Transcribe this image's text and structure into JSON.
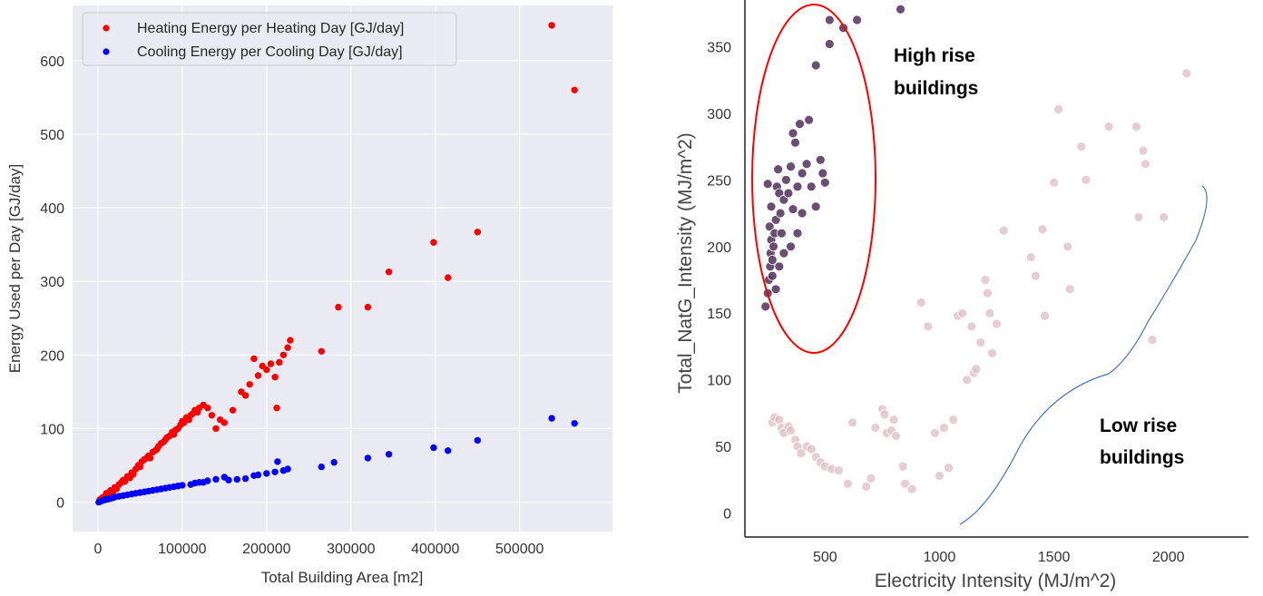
{
  "chart_data": [
    {
      "type": "scatter",
      "xlabel": "Total Building Area [m2]",
      "ylabel": "Energy Used per Day [GJ/day]",
      "xlim": [
        -30000,
        610000
      ],
      "ylim": [
        -40,
        675
      ],
      "x_ticks": [
        0,
        100000,
        200000,
        300000,
        400000,
        500000
      ],
      "y_ticks": [
        0,
        100,
        200,
        300,
        400,
        500,
        600
      ],
      "grid": true,
      "legend_position": "top-left",
      "series": [
        {
          "name": "Heating Energy per Heating Day [GJ/day]",
          "color": "#ff0000",
          "points": [
            [
              2000,
              3
            ],
            [
              5000,
              6
            ],
            [
              8000,
              8
            ],
            [
              10000,
              12
            ],
            [
              12000,
              10
            ],
            [
              15000,
              16
            ],
            [
              18000,
              14
            ],
            [
              20000,
              20
            ],
            [
              22000,
              18
            ],
            [
              25000,
              24
            ],
            [
              28000,
              27
            ],
            [
              30000,
              30
            ],
            [
              32000,
              28
            ],
            [
              35000,
              35
            ],
            [
              38000,
              33
            ],
            [
              40000,
              40
            ],
            [
              42000,
              38
            ],
            [
              45000,
              45
            ],
            [
              48000,
              50
            ],
            [
              50000,
              48
            ],
            [
              52000,
              55
            ],
            [
              55000,
              58
            ],
            [
              58000,
              60
            ],
            [
              60000,
              63
            ],
            [
              62000,
              60
            ],
            [
              65000,
              68
            ],
            [
              68000,
              70
            ],
            [
              70000,
              72
            ],
            [
              72000,
              76
            ],
            [
              75000,
              80
            ],
            [
              78000,
              82
            ],
            [
              80000,
              85
            ],
            [
              82000,
              88
            ],
            [
              85000,
              90
            ],
            [
              88000,
              95
            ],
            [
              90000,
              92
            ],
            [
              92000,
              98
            ],
            [
              95000,
              100
            ],
            [
              98000,
              105
            ],
            [
              100000,
              110
            ],
            [
              102000,
              108
            ],
            [
              105000,
              115
            ],
            [
              108000,
              112
            ],
            [
              110000,
              118
            ],
            [
              112000,
              120
            ],
            [
              115000,
              125
            ],
            [
              118000,
              122
            ],
            [
              120000,
              128
            ],
            [
              125000,
              132
            ],
            [
              130000,
              128
            ],
            [
              135000,
              118
            ],
            [
              140000,
              100
            ],
            [
              145000,
              112
            ],
            [
              150000,
              108
            ],
            [
              160000,
              125
            ],
            [
              170000,
              150
            ],
            [
              175000,
              145
            ],
            [
              180000,
              160
            ],
            [
              185000,
              195
            ],
            [
              190000,
              172
            ],
            [
              195000,
              185
            ],
            [
              200000,
              180
            ],
            [
              205000,
              188
            ],
            [
              210000,
              170
            ],
            [
              212000,
              128
            ],
            [
              215000,
              190
            ],
            [
              220000,
              200
            ],
            [
              225000,
              210
            ],
            [
              228000,
              220
            ],
            [
              265000,
              205
            ],
            [
              285000,
              265
            ],
            [
              320000,
              265
            ],
            [
              345000,
              313
            ],
            [
              398000,
              353
            ],
            [
              415000,
              305
            ],
            [
              450000,
              367
            ],
            [
              538000,
              648
            ],
            [
              565000,
              560
            ]
          ]
        },
        {
          "name": "Cooling Energy per Cooling Day [GJ/day]",
          "color": "#0000ff",
          "points": [
            [
              1000,
              0
            ],
            [
              3000,
              1
            ],
            [
              5000,
              2
            ],
            [
              8000,
              3
            ],
            [
              10000,
              4
            ],
            [
              12000,
              4
            ],
            [
              15000,
              5
            ],
            [
              18000,
              6
            ],
            [
              20000,
              7
            ],
            [
              25000,
              8
            ],
            [
              30000,
              9
            ],
            [
              35000,
              10
            ],
            [
              40000,
              11
            ],
            [
              45000,
              12
            ],
            [
              50000,
              13
            ],
            [
              55000,
              14
            ],
            [
              60000,
              15
            ],
            [
              65000,
              16
            ],
            [
              70000,
              17
            ],
            [
              75000,
              18
            ],
            [
              80000,
              19
            ],
            [
              85000,
              20
            ],
            [
              90000,
              21
            ],
            [
              95000,
              22
            ],
            [
              100000,
              23
            ],
            [
              110000,
              24
            ],
            [
              115000,
              26
            ],
            [
              120000,
              27
            ],
            [
              125000,
              27
            ],
            [
              130000,
              29
            ],
            [
              140000,
              31
            ],
            [
              150000,
              34
            ],
            [
              155000,
              30
            ],
            [
              165000,
              31
            ],
            [
              175000,
              32
            ],
            [
              185000,
              36
            ],
            [
              190000,
              37
            ],
            [
              200000,
              39
            ],
            [
              210000,
              41
            ],
            [
              213000,
              55
            ],
            [
              220000,
              43
            ],
            [
              225000,
              45
            ],
            [
              265000,
              48
            ],
            [
              280000,
              54
            ],
            [
              320000,
              60
            ],
            [
              345000,
              65
            ],
            [
              398000,
              74
            ],
            [
              415000,
              70
            ],
            [
              450000,
              84
            ],
            [
              538000,
              114
            ],
            [
              565000,
              107
            ]
          ]
        }
      ]
    },
    {
      "type": "scatter",
      "xlabel": "Electricity Intensity (MJ/m^2)",
      "ylabel": "Total_NatG_Intensity (MJ/m^2)",
      "xlim": [
        150,
        2350
      ],
      "ylim": [
        -18,
        385
      ],
      "x_ticks": [
        500,
        1000,
        1500,
        2000
      ],
      "y_ticks": [
        0,
        50,
        100,
        150,
        200,
        250,
        300,
        350
      ],
      "grid": false,
      "series": [
        {
          "name": "",
          "color": "#50305a",
          "points": [
            [
              240,
              155
            ],
            [
              250,
              165
            ],
            [
              255,
              175
            ],
            [
              260,
              185
            ],
            [
              262,
              195
            ],
            [
              265,
              205
            ],
            [
              258,
              215
            ],
            [
              270,
              190
            ],
            [
              275,
              200
            ],
            [
              280,
              210
            ],
            [
              285,
              220
            ],
            [
              265,
              230
            ],
            [
              290,
              245
            ],
            [
              295,
              258
            ],
            [
              300,
              240
            ],
            [
              305,
              225
            ],
            [
              310,
              210
            ],
            [
              250,
              247
            ],
            [
              320,
              235
            ],
            [
              330,
              250
            ],
            [
              340,
              240
            ],
            [
              350,
              260
            ],
            [
              360,
              228
            ],
            [
              380,
              245
            ],
            [
              400,
              255
            ],
            [
              420,
              262
            ],
            [
              440,
              245
            ],
            [
              460,
              230
            ],
            [
              380,
              210
            ],
            [
              400,
              225
            ],
            [
              350,
              200
            ],
            [
              320,
              195
            ],
            [
              300,
              185
            ],
            [
              270,
              178
            ],
            [
              285,
              168
            ],
            [
              360,
              285
            ],
            [
              370,
              278
            ],
            [
              390,
              292
            ],
            [
              430,
              295
            ],
            [
              480,
              265
            ],
            [
              490,
              255
            ],
            [
              500,
              248
            ],
            [
              460,
              336
            ],
            [
              520,
              370
            ],
            [
              520,
              352
            ],
            [
              580,
              364
            ],
            [
              640,
              370
            ],
            [
              830,
              378
            ]
          ]
        },
        {
          "name": "",
          "color": "#dcbcc4",
          "points": [
            [
              270,
              68
            ],
            [
              280,
              72
            ],
            [
              300,
              70
            ],
            [
              310,
              64
            ],
            [
              320,
              60
            ],
            [
              340,
              65
            ],
            [
              350,
              62
            ],
            [
              370,
              55
            ],
            [
              380,
              50
            ],
            [
              395,
              45
            ],
            [
              420,
              50
            ],
            [
              440,
              48
            ],
            [
              460,
              42
            ],
            [
              480,
              38
            ],
            [
              500,
              35
            ],
            [
              530,
              33
            ],
            [
              560,
              32
            ],
            [
              600,
              22
            ],
            [
              620,
              68
            ],
            [
              680,
              20
            ],
            [
              700,
              26
            ],
            [
              720,
              64
            ],
            [
              750,
              78
            ],
            [
              760,
              74
            ],
            [
              770,
              60
            ],
            [
              790,
              62
            ],
            [
              800,
              70
            ],
            [
              810,
              58
            ],
            [
              840,
              35
            ],
            [
              850,
              22
            ],
            [
              880,
              18
            ],
            [
              920,
              158
            ],
            [
              950,
              140
            ],
            [
              980,
              60
            ],
            [
              1000,
              28
            ],
            [
              1020,
              64
            ],
            [
              1040,
              34
            ],
            [
              1060,
              70
            ],
            [
              1080,
              148
            ],
            [
              1100,
              150
            ],
            [
              1120,
              100
            ],
            [
              1140,
              140
            ],
            [
              1150,
              105
            ],
            [
              1160,
              108
            ],
            [
              1180,
              128
            ],
            [
              1200,
              175
            ],
            [
              1210,
              165
            ],
            [
              1220,
              150
            ],
            [
              1230,
              120
            ],
            [
              1250,
              142
            ],
            [
              1280,
              212
            ],
            [
              1400,
              192
            ],
            [
              1420,
              178
            ],
            [
              1450,
              213
            ],
            [
              1460,
              148
            ],
            [
              1500,
              248
            ],
            [
              1520,
              303
            ],
            [
              1560,
              200
            ],
            [
              1570,
              168
            ],
            [
              1620,
              275
            ],
            [
              1640,
              250
            ],
            [
              1740,
              290
            ],
            [
              1860,
              290
            ],
            [
              1870,
              222
            ],
            [
              1890,
              272
            ],
            [
              1900,
              262
            ],
            [
              1930,
              130
            ],
            [
              1980,
              222
            ],
            [
              2080,
              330
            ]
          ]
        }
      ],
      "annotations": [
        {
          "text_lines": [
            "High rise",
            "buildings"
          ],
          "color": "#000000"
        },
        {
          "text_lines": [
            "Low rise",
            "buildings"
          ],
          "color": "#000000"
        }
      ],
      "ellipse_color": "#ff0000",
      "brace_color": "#4472c4"
    }
  ]
}
